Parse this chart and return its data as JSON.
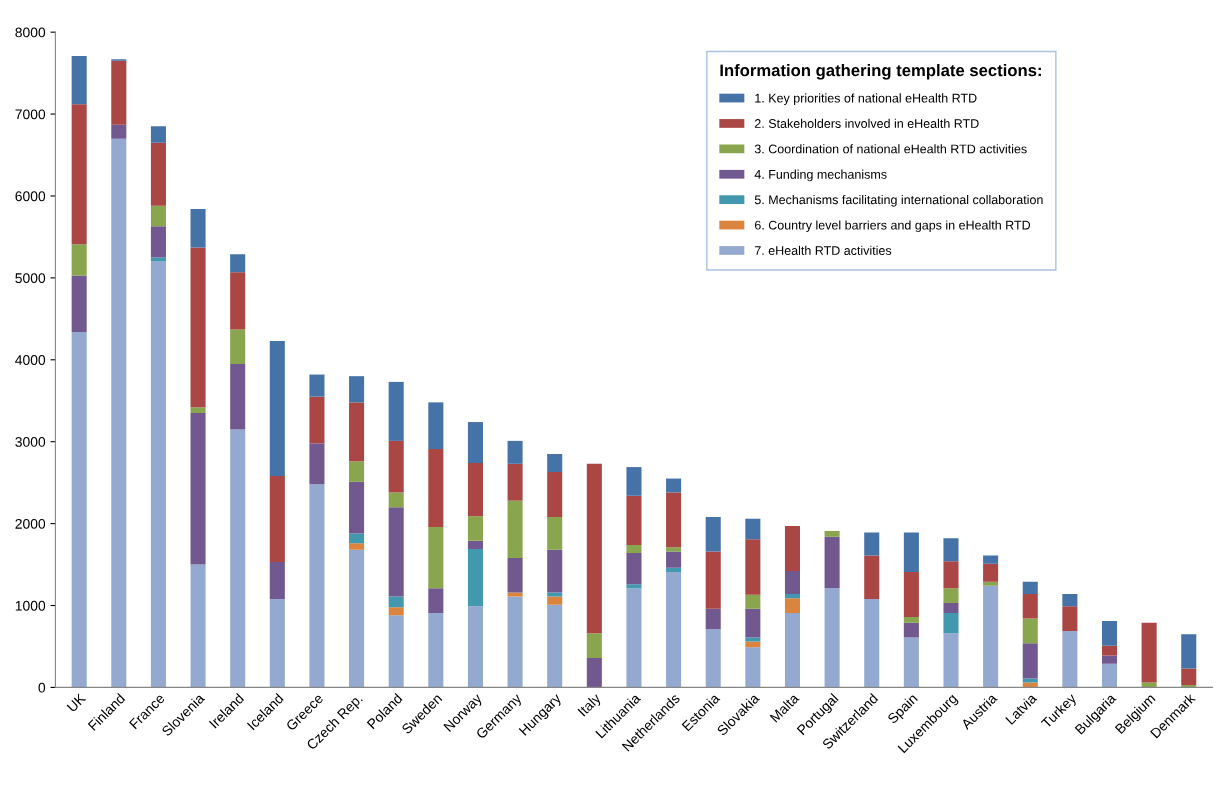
{
  "chart_data": {
    "type": "bar",
    "stacked": true,
    "categories": [
      "UK",
      "Finland",
      "France",
      "Slovenia",
      "Ireland",
      "Iceland",
      "Greece",
      "Czech Rep.",
      "Poland",
      "Sweden",
      "Norway",
      "Germany",
      "Hungary",
      "Italy",
      "Lithuania",
      "Netherlands",
      "Estonia",
      "Slovakia",
      "Malta",
      "Portugal",
      "Switzerland",
      "Spain",
      "Luxembourg",
      "Austria",
      "Latvia",
      "Turkey",
      "Bulgaria",
      "Belgium",
      "Denmark"
    ],
    "series": [
      {
        "name": "7. eHealth RTD activities",
        "color": "#93a9cf",
        "values": [
          4340,
          6700,
          5200,
          1500,
          3150,
          1080,
          2480,
          1680,
          880,
          910,
          990,
          1110,
          1010,
          0,
          1210,
          1410,
          710,
          490,
          910,
          1210,
          1080,
          610,
          660,
          1240,
          0,
          690,
          290,
          0,
          0
        ]
      },
      {
        "name": "6. Country level barriers and gaps in eHealth RTD",
        "color": "#db843d",
        "values": [
          0,
          0,
          0,
          0,
          0,
          0,
          0,
          80,
          100,
          0,
          0,
          50,
          100,
          0,
          0,
          0,
          0,
          70,
          180,
          0,
          0,
          0,
          0,
          0,
          60,
          0,
          0,
          0,
          0
        ]
      },
      {
        "name": "5. Mechanisms facilitating international collaboration",
        "color": "#4198af",
        "values": [
          0,
          0,
          50,
          0,
          0,
          0,
          0,
          120,
          130,
          0,
          700,
          0,
          50,
          0,
          50,
          50,
          0,
          50,
          50,
          0,
          0,
          0,
          250,
          0,
          50,
          0,
          0,
          0,
          0
        ]
      },
      {
        "name": "4. Funding mechanisms",
        "color": "#71588f",
        "values": [
          690,
          170,
          380,
          1850,
          800,
          450,
          500,
          630,
          1090,
          300,
          100,
          420,
          520,
          360,
          380,
          200,
          250,
          350,
          280,
          630,
          0,
          180,
          120,
          0,
          430,
          0,
          100,
          0,
          0
        ]
      },
      {
        "name": "3. Coordination of national eHealth RTD activities",
        "color": "#89a54e",
        "values": [
          380,
          0,
          250,
          70,
          420,
          0,
          0,
          250,
          180,
          750,
          300,
          700,
          400,
          300,
          100,
          50,
          0,
          170,
          0,
          70,
          0,
          70,
          180,
          50,
          300,
          0,
          0,
          60,
          30
        ]
      },
      {
        "name": "2. Stakeholders involved in eHealth RTD",
        "color": "#aa4643",
        "values": [
          1710,
          780,
          770,
          1950,
          700,
          1050,
          570,
          720,
          630,
          950,
          650,
          450,
          550,
          2070,
          600,
          670,
          700,
          680,
          550,
          0,
          530,
          550,
          330,
          220,
          300,
          300,
          120,
          730,
          200
        ]
      },
      {
        "name": "1. Key priorities of national eHealth RTD",
        "color": "#4572a7",
        "values": [
          590,
          20,
          200,
          470,
          220,
          1650,
          270,
          320,
          720,
          570,
          500,
          280,
          220,
          0,
          350,
          170,
          420,
          250,
          0,
          0,
          280,
          480,
          280,
          100,
          150,
          150,
          300,
          0,
          420
        ]
      }
    ],
    "legend_title": "Information gathering template sections:",
    "legend": "top right",
    "ylim": [
      0,
      8000
    ],
    "yticks": [
      0,
      1000,
      2000,
      3000,
      4000,
      5000,
      6000,
      7000,
      8000
    ],
    "grid": false
  }
}
